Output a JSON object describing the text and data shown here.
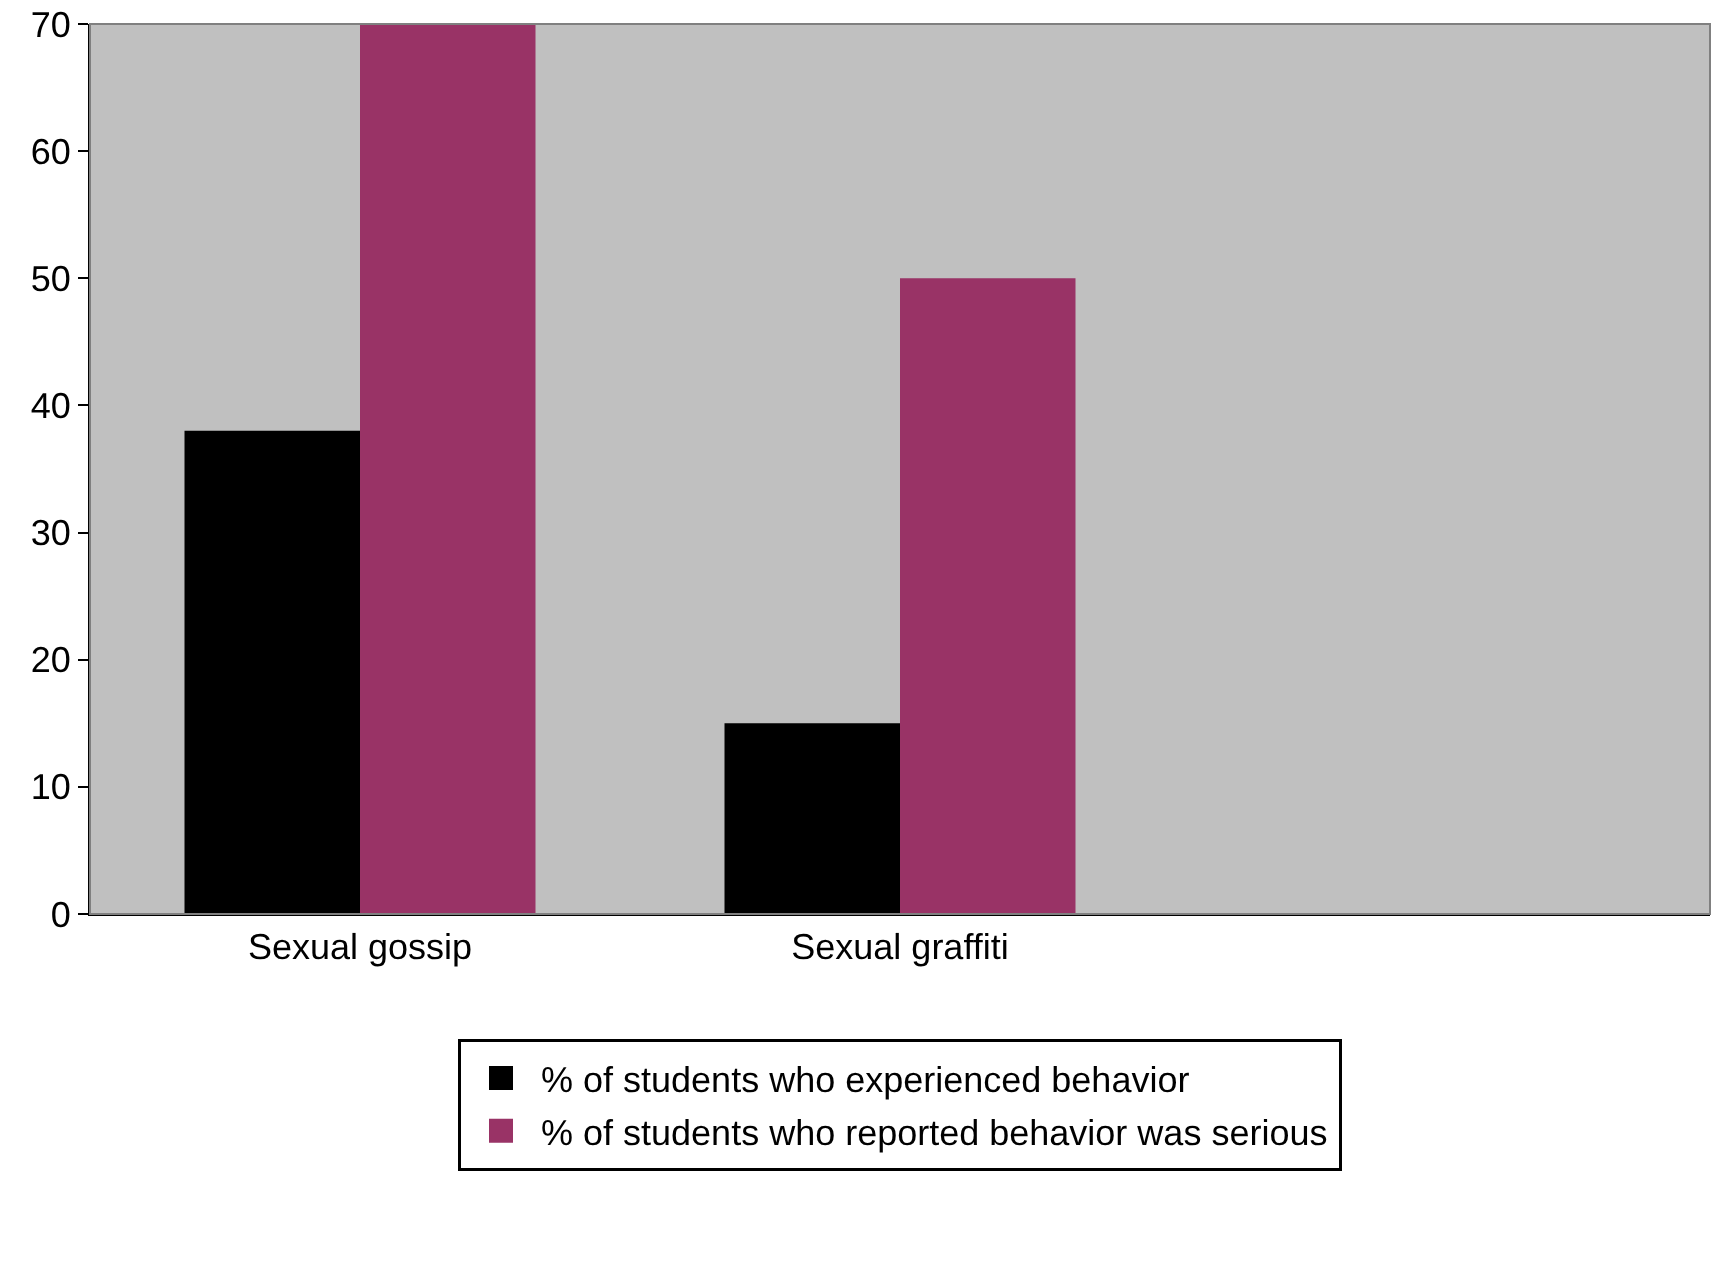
{
  "chart_data": {
    "type": "bar",
    "categories": [
      "Sexual gossip",
      "Sexual graffiti",
      null
    ],
    "series": [
      {
        "name": "% of students who experienced behavior",
        "color": "#000000",
        "values": [
          38,
          15,
          null
        ]
      },
      {
        "name": "% of students who reported behavior was serious",
        "color": "#993366",
        "values": [
          70,
          50,
          null
        ]
      }
    ],
    "ylim": [
      0,
      70
    ],
    "yticks": [
      0,
      10,
      20,
      30,
      40,
      50,
      60,
      70
    ],
    "grid": false,
    "legend": "bottom"
  }
}
